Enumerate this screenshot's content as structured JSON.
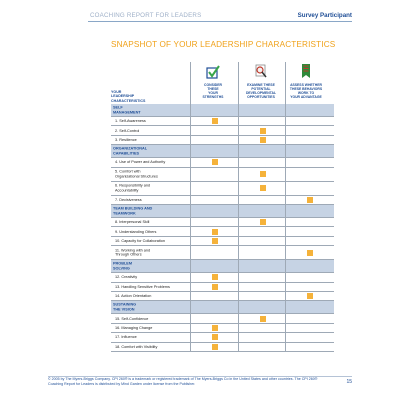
{
  "header": {
    "report_title": "COACHING REPORT FOR LEADERS",
    "participant": "Survey Participant"
  },
  "title": "SNAPSHOT OF YOUR LEADERSHIP CHARACTERISTICS",
  "corner_label": "YOUR\nLEADERSHIP\nCHARACTERISTICS",
  "columns": [
    {
      "label": "CONSIDER\nTHESE\nYOUR\nSTRENGTHS",
      "icon": "checkmark-box-icon"
    },
    {
      "label": "EXAMINE THESE\nPOTENTIAL\nDEVELOPMENTAL\nOPPORTUNITIES",
      "icon": "magnifier-icon"
    },
    {
      "label": "ASSESS WHETHER\nTHESE BEHAVIORS\nWORK TO\nYOUR ADVANTAGE",
      "icon": "pennant-icon"
    }
  ],
  "rows": [
    {
      "type": "section",
      "label": "SELF\nMANAGEMENT"
    },
    {
      "type": "item",
      "label": "1. Self-Awareness",
      "mark": 0
    },
    {
      "type": "item",
      "label": "2. Self-Control",
      "mark": 1
    },
    {
      "type": "item",
      "label": "3. Resilience",
      "mark": 1
    },
    {
      "type": "section",
      "label": "ORGANIZATIONAL\nCAPABILITIES"
    },
    {
      "type": "item",
      "label": "4. Use of Power and Authority",
      "mark": 0
    },
    {
      "type": "item",
      "label": "5. Comfort with\nOrganizational Structures",
      "mark": 1
    },
    {
      "type": "item",
      "label": "6. Responsibility and\nAccountability",
      "mark": 1
    },
    {
      "type": "item",
      "label": "7. Decisiveness",
      "mark": 2
    },
    {
      "type": "section",
      "label": "TEAM BUILDING AND\nTEAMWORK"
    },
    {
      "type": "item",
      "label": "8. Interpersonal Skill",
      "mark": 1
    },
    {
      "type": "item",
      "label": "9. Understanding Others",
      "mark": 0
    },
    {
      "type": "item",
      "label": "10. Capacity for Collaboration",
      "mark": 0
    },
    {
      "type": "item",
      "label": "11. Working with and\nThrough Others",
      "mark": 2
    },
    {
      "type": "section",
      "label": "PROBLEM\nSOLVING"
    },
    {
      "type": "item",
      "label": "12. Creativity",
      "mark": 0
    },
    {
      "type": "item",
      "label": "13. Handling Sensitive Problems",
      "mark": 0
    },
    {
      "type": "item",
      "label": "14. Action Orientation",
      "mark": 2
    },
    {
      "type": "section",
      "label": "SUSTAINING\nTHE VISION"
    },
    {
      "type": "item",
      "label": "15. Self-Confidence",
      "mark": 1
    },
    {
      "type": "item",
      "label": "16. Managing Change",
      "mark": 0
    },
    {
      "type": "item",
      "label": "17. Influence",
      "mark": 0
    },
    {
      "type": "item",
      "label": "18. Comfort with Visibility",
      "mark": 0
    }
  ],
  "footer": {
    "text": "© 2005 by The Myers-Briggs Company. CPI 260® is a trademark or registered trademark of The Myers-Briggs Co in the United States and other countries. The CPI 260® Coaching Report for Leaders is distributed by Mind Garden under license from the Publisher.",
    "page": "15"
  },
  "colors": {
    "accent": "#f0a21b",
    "navy": "#1f4e96",
    "section_bg": "#c6d3e4",
    "mark": "#f5b23a"
  }
}
